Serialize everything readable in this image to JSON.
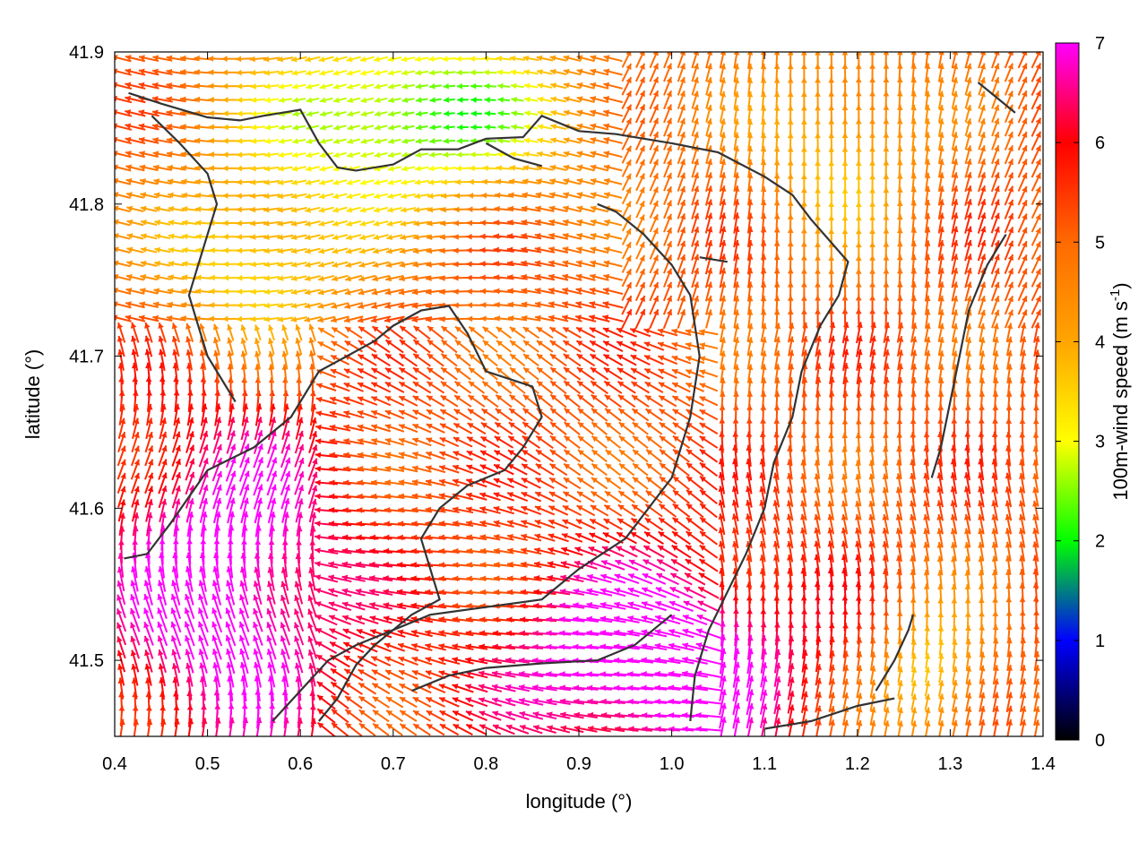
{
  "chart_data": {
    "type": "vector-field",
    "xlabel": "longitude (°)",
    "ylabel": "latitude (°)",
    "xlim": [
      0.4,
      1.4
    ],
    "ylim": [
      41.45,
      41.9
    ],
    "xticks": [
      "0.4",
      "0.5",
      "0.6",
      "0.7",
      "0.8",
      "0.9",
      "1.0",
      "1.1",
      "1.2",
      "1.3",
      "1.4"
    ],
    "yticks": [
      "41.5",
      "41.6",
      "41.7",
      "41.8",
      "41.9"
    ],
    "colorbar": {
      "label": "100m-wind speed (m s",
      "label_sup": "-1",
      "label_end": ")",
      "range": [
        0,
        7
      ],
      "ticks": [
        "0",
        "1",
        "2",
        "3",
        "4",
        "5",
        "6",
        "7"
      ],
      "colors": [
        "#000000",
        "#0000ff",
        "#00ff00",
        "#ffff00",
        "#ffa500",
        "#ff6a00",
        "#ff0000",
        "#ff00ff"
      ]
    },
    "contours": [
      [
        [
          0.415,
          41.873
        ],
        [
          0.45,
          41.866
        ],
        [
          0.5,
          41.857
        ],
        [
          0.535,
          41.855
        ],
        [
          0.56,
          41.858
        ],
        [
          0.58,
          41.86
        ],
        [
          0.6,
          41.862
        ],
        [
          0.62,
          41.84
        ],
        [
          0.64,
          41.824
        ],
        [
          0.66,
          41.822
        ],
        [
          0.7,
          41.826
        ],
        [
          0.73,
          41.836
        ],
        [
          0.77,
          41.836
        ],
        [
          0.8,
          41.843
        ],
        [
          0.84,
          41.844
        ],
        [
          0.86,
          41.858
        ],
        [
          0.9,
          41.848
        ],
        [
          0.94,
          41.846
        ],
        [
          1.0,
          41.84
        ],
        [
          1.05,
          41.834
        ],
        [
          1.1,
          41.818
        ],
        [
          1.13,
          41.806
        ],
        [
          1.15,
          41.79
        ],
        [
          1.17,
          41.776
        ],
        [
          1.19,
          41.762
        ],
        [
          1.18,
          41.74
        ],
        [
          1.16,
          41.72
        ],
        [
          1.14,
          41.69
        ],
        [
          1.13,
          41.66
        ],
        [
          1.11,
          41.63
        ],
        [
          1.1,
          41.6
        ],
        [
          1.08,
          41.57
        ],
        [
          1.06,
          41.545
        ],
        [
          1.04,
          41.52
        ],
        [
          1.025,
          41.49
        ],
        [
          1.02,
          41.46
        ]
      ],
      [
        [
          0.41,
          41.567
        ],
        [
          0.435,
          41.57
        ],
        [
          0.46,
          41.59
        ],
        [
          0.5,
          41.625
        ],
        [
          0.55,
          41.64
        ],
        [
          0.59,
          41.66
        ],
        [
          0.62,
          41.69
        ],
        [
          0.65,
          41.7
        ],
        [
          0.68,
          41.71
        ],
        [
          0.7,
          41.72
        ],
        [
          0.73,
          41.73
        ],
        [
          0.76,
          41.733
        ],
        [
          0.78,
          41.715
        ],
        [
          0.8,
          41.69
        ],
        [
          0.82,
          41.686
        ],
        [
          0.85,
          41.68
        ],
        [
          0.86,
          41.66
        ],
        [
          0.84,
          41.64
        ],
        [
          0.82,
          41.625
        ],
        [
          0.8,
          41.62
        ],
        [
          0.78,
          41.615
        ],
        [
          0.75,
          41.6
        ],
        [
          0.73,
          41.58
        ],
        [
          0.74,
          41.56
        ],
        [
          0.75,
          41.54
        ],
        [
          0.72,
          41.53
        ],
        [
          0.7,
          41.52
        ],
        [
          0.68,
          41.51
        ],
        [
          0.66,
          41.497
        ],
        [
          0.64,
          41.475
        ],
        [
          0.62,
          41.46
        ]
      ],
      [
        [
          0.44,
          41.858
        ],
        [
          0.47,
          41.84
        ],
        [
          0.5,
          41.82
        ],
        [
          0.51,
          41.8
        ],
        [
          0.5,
          41.78
        ],
        [
          0.49,
          41.76
        ],
        [
          0.48,
          41.74
        ],
        [
          0.49,
          41.72
        ],
        [
          0.5,
          41.7
        ],
        [
          0.52,
          41.68
        ],
        [
          0.53,
          41.67
        ]
      ],
      [
        [
          0.57,
          41.46
        ],
        [
          0.6,
          41.48
        ],
        [
          0.63,
          41.5
        ],
        [
          0.66,
          41.51
        ],
        [
          0.7,
          41.52
        ],
        [
          0.74,
          41.53
        ],
        [
          0.8,
          41.535
        ],
        [
          0.86,
          41.54
        ],
        [
          0.9,
          41.56
        ],
        [
          0.95,
          41.58
        ],
        [
          1.0,
          41.62
        ],
        [
          1.02,
          41.66
        ],
        [
          1.03,
          41.7
        ],
        [
          1.02,
          41.74
        ],
        [
          1.0,
          41.76
        ],
        [
          0.97,
          41.78
        ],
        [
          0.94,
          41.795
        ],
        [
          0.92,
          41.8
        ]
      ],
      [
        [
          0.72,
          41.48
        ],
        [
          0.76,
          41.49
        ],
        [
          0.8,
          41.495
        ],
        [
          0.86,
          41.498
        ],
        [
          0.92,
          41.5
        ],
        [
          0.96,
          41.51
        ],
        [
          1.0,
          41.53
        ]
      ],
      [
        [
          1.22,
          41.48
        ],
        [
          1.24,
          41.5
        ],
        [
          1.255,
          41.52
        ],
        [
          1.26,
          41.53
        ]
      ],
      [
        [
          1.1,
          41.455
        ],
        [
          1.15,
          41.46
        ],
        [
          1.2,
          41.47
        ],
        [
          1.24,
          41.475
        ]
      ],
      [
        [
          1.33,
          41.88
        ],
        [
          1.35,
          41.87
        ],
        [
          1.37,
          41.86
        ]
      ],
      [
        [
          1.36,
          41.78
        ],
        [
          1.34,
          41.76
        ],
        [
          1.32,
          41.73
        ],
        [
          1.31,
          41.7
        ],
        [
          1.3,
          41.67
        ],
        [
          1.29,
          41.64
        ],
        [
          1.28,
          41.62
        ]
      ],
      [
        [
          0.8,
          41.84
        ],
        [
          0.83,
          41.83
        ],
        [
          0.86,
          41.825
        ]
      ],
      [
        [
          1.03,
          41.765
        ],
        [
          1.06,
          41.762
        ]
      ]
    ]
  }
}
